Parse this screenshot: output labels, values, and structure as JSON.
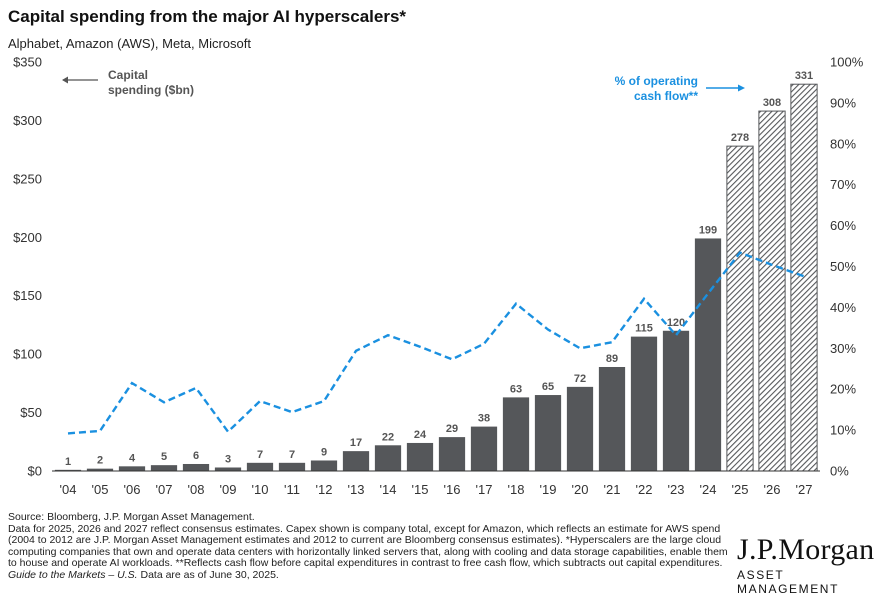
{
  "header": {
    "title": "Capital spending from the major AI hyperscalers*",
    "subtitle": "Alphabet, Amazon (AWS), Meta, Microsoft"
  },
  "chart_data": {
    "type": "bar",
    "categories": [
      "'04",
      "'05",
      "'06",
      "'07",
      "'08",
      "'09",
      "'10",
      "'11",
      "'12",
      "'13",
      "'14",
      "'15",
      "'16",
      "'17",
      "'18",
      "'19",
      "'20",
      "'21",
      "'22",
      "'23",
      "'24",
      "'25",
      "'26",
      "'27"
    ],
    "series": [
      {
        "type": "bar",
        "axis": "left",
        "values": [
          1,
          2,
          4,
          5,
          6,
          3,
          7,
          7,
          9,
          17,
          22,
          24,
          29,
          38,
          63,
          65,
          72,
          89,
          115,
          120,
          199,
          278,
          308,
          331
        ],
        "value_labels": [
          "1",
          "2",
          "4",
          "5",
          "6",
          "3",
          "7",
          "7",
          "9",
          "17",
          "22",
          "24",
          "29",
          "38",
          "63",
          "65",
          "72",
          "89",
          "115",
          "120",
          "199",
          "278",
          "308",
          "331"
        ],
        "estimate_from_index": 21
      },
      {
        "type": "line",
        "axis": "right",
        "style": "dashed",
        "values": [
          9.2,
          9.8,
          21.5,
          16.8,
          20.3,
          9.6,
          17.1,
          14.4,
          17.1,
          29.4,
          33.2,
          30.4,
          27.3,
          31.1,
          40.9,
          34.6,
          30.0,
          31.5,
          42.1,
          33.2,
          43.4,
          53.4,
          50.4,
          47.6
        ]
      }
    ],
    "y_left": {
      "ticks": [
        "$0",
        "$50",
        "$100",
        "$150",
        "$200",
        "$250",
        "$300",
        "$350"
      ],
      "ylim": [
        0,
        350
      ]
    },
    "y_right": {
      "ticks": [
        "0%",
        "10%",
        "20%",
        "30%",
        "40%",
        "50%",
        "60%",
        "70%",
        "80%",
        "90%",
        "100%"
      ],
      "ylim": [
        0,
        100
      ]
    },
    "annotations": {
      "left_line1": "Capital",
      "left_line2": "spending ($bn)",
      "right_line1": "% of operating",
      "right_line2": "cash flow**"
    },
    "grid": false,
    "colors": {
      "bar": "#55575a",
      "line": "#1a90e0",
      "label": "#555555",
      "axis": "#333333"
    }
  },
  "footnotes": {
    "line1": "Source: Bloomberg, J.P. Morgan Asset Management.",
    "line2": "Data for 2025, 2026 and 2027 reflect consensus estimates. Capex shown is company total, except for Amazon, which reflects an estimate for AWS spend (2004 to 2012 are J.P. Morgan Asset Management estimates and 2012 to current are Bloomberg consensus estimates).  *Hyperscalers are the large cloud computing companies that own and operate data centers with horizontally linked servers that, along with cooling and data storage capabilities, enable them to house and operate AI workloads. **Reflects cash flow before capital expenditures in contrast to free cash flow, which subtracts out capital expenditures.",
    "guide_title": "Guide to the Markets – U.S.",
    "guide_rest": " Data are as of June 30, 2025."
  },
  "logo": {
    "main": "J.P.Morgan",
    "sub": "ASSET MANAGEMENT"
  }
}
